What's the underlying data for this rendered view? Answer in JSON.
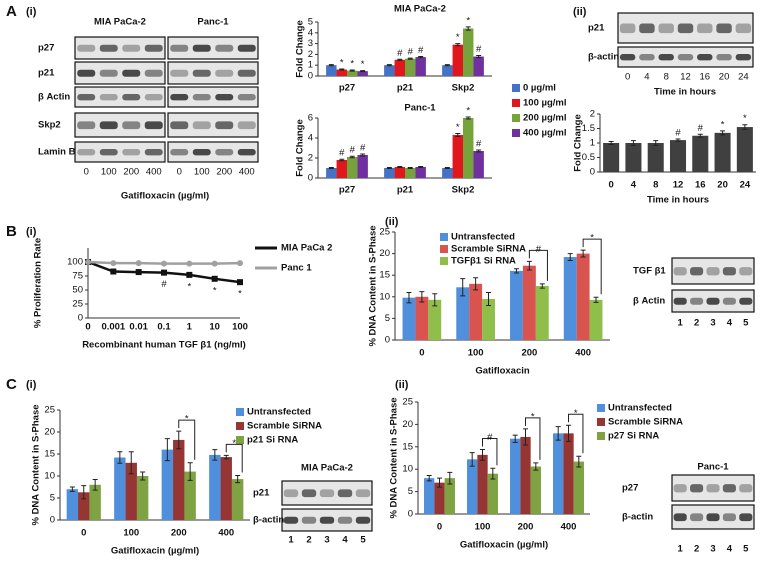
{
  "panel_labels": [
    "A",
    "(i)",
    "(ii)",
    "B",
    "(i)",
    "(ii)",
    "C",
    "(i)",
    "(ii)"
  ],
  "chart_data": [
    {
      "type": "bar",
      "title": "MIA PaCa-2",
      "ylabel": "Fold Change",
      "categories": [
        "p27",
        "p21",
        "Skp2"
      ],
      "ylim": [
        0,
        5
      ],
      "yticks": [
        0,
        1,
        2,
        3,
        4,
        5
      ],
      "legend": true,
      "series": [
        {
          "name": "0 µg/ml",
          "color": "#4472c4",
          "values": [
            1,
            1,
            1
          ],
          "errors": [
            0.05,
            0.05,
            0.05
          ]
        },
        {
          "name": "100 µg/ml",
          "color": "#e0181e",
          "values": [
            0.6,
            1.5,
            2.9
          ],
          "errors": [
            0.05,
            0.05,
            0.1
          ],
          "annotations": [
            "*",
            "#",
            "*"
          ]
        },
        {
          "name": "200 µg/ml",
          "color": "#77a33c",
          "values": [
            0.5,
            1.6,
            4.4
          ],
          "errors": [
            0.05,
            0.05,
            0.15
          ],
          "annotations": [
            "*",
            "#",
            "*"
          ]
        },
        {
          "name": "400 µg/ml",
          "color": "#7030a0",
          "values": [
            0.45,
            1.75,
            1.8
          ],
          "errors": [
            0.05,
            0.05,
            0.1
          ],
          "annotations": [
            "*",
            "#",
            "#"
          ]
        }
      ]
    },
    {
      "type": "bar",
      "title": "Panc-1",
      "ylabel": "Fold Change",
      "categories": [
        "p27",
        "p21",
        "Skp2"
      ],
      "ylim": [
        0,
        6
      ],
      "yticks": [
        0,
        2,
        4,
        6
      ],
      "series": [
        {
          "color": "#4472c4",
          "values": [
            1,
            1,
            1
          ],
          "errors": [
            0.05,
            0.05,
            0.05
          ]
        },
        {
          "color": "#e0181e",
          "values": [
            1.8,
            1.1,
            4.3
          ],
          "errors": [
            0.08,
            0.05,
            0.15
          ],
          "annotations": [
            "#",
            null,
            "*"
          ]
        },
        {
          "color": "#77a33c",
          "values": [
            2.1,
            1.0,
            6.0
          ],
          "errors": [
            0.08,
            0.05,
            0.1
          ],
          "annotations": [
            "#",
            null,
            "*"
          ]
        },
        {
          "color": "#7030a0",
          "values": [
            2.3,
            1.1,
            2.7
          ],
          "errors": [
            0.1,
            0.05,
            0.1
          ],
          "annotations": [
            "#",
            null,
            "#"
          ]
        }
      ]
    },
    {
      "type": "bar",
      "ylabel": "Fold Change",
      "xlabel": "Time in hours",
      "categories": [
        "0",
        "4",
        "8",
        "12",
        "16",
        "20",
        "24"
      ],
      "ylim": [
        0,
        2
      ],
      "yticks": [
        0,
        0.5,
        1,
        1.5,
        2
      ],
      "series": [
        {
          "color": "#404040",
          "values": [
            1,
            1,
            1,
            1.1,
            1.25,
            1.35,
            1.55
          ],
          "errors": [
            0.05,
            0.08,
            0.08,
            0.04,
            0.05,
            0.07,
            0.08
          ],
          "annotations": [
            null,
            null,
            null,
            "#",
            "#",
            "*",
            "*"
          ]
        }
      ]
    },
    {
      "type": "line",
      "ylabel": "% Proliferation Rate",
      "xlabel": "Recombinant human TGF β1 (ng/ml)",
      "categories": [
        "0",
        "0.001",
        "0.01",
        "0.1",
        "1",
        "10",
        "100"
      ],
      "ylim": [
        0,
        125
      ],
      "yticks": [
        0,
        25,
        50,
        75,
        100
      ],
      "legend": true,
      "series": [
        {
          "name": "MIA PaCa 2",
          "color": "#111111",
          "marker": "square",
          "values": [
            100,
            83,
            82,
            81,
            77,
            70,
            64
          ],
          "annotations": [
            null,
            null,
            null,
            "#",
            "*",
            "*",
            "*"
          ]
        },
        {
          "name": "Panc 1",
          "color": "#a0a0a0",
          "marker": "circle",
          "values": [
            100,
            98,
            98,
            97,
            97,
            97,
            98
          ]
        }
      ]
    },
    {
      "type": "bar",
      "ylabel": "% DNA Content  in S-Phase",
      "xlabel": "Gatifloxacin",
      "categories": [
        "0",
        "100",
        "200",
        "400"
      ],
      "ylim": [
        0,
        25
      ],
      "yticks": [
        0,
        5,
        10,
        15,
        20,
        25
      ],
      "legend": true,
      "brackets": [
        null,
        null,
        "#",
        "*"
      ],
      "series": [
        {
          "name": "Untransfected",
          "color": "#4f8fdc",
          "values": [
            9.8,
            12.2,
            16,
            19.2
          ],
          "errors": [
            1.2,
            2,
            0.5,
            0.8
          ]
        },
        {
          "name": "Scramble SiRNA",
          "color": "#d9534f",
          "values": [
            10,
            13,
            17.2,
            20
          ],
          "errors": [
            1.2,
            1.4,
            1,
            0.8
          ]
        },
        {
          "name": "TGFβ1 Si RNA",
          "color": "#8fbf4a",
          "values": [
            9.3,
            9.5,
            12.5,
            9.3
          ],
          "errors": [
            1.4,
            1.5,
            0.5,
            0.6
          ]
        }
      ]
    },
    {
      "type": "bar",
      "ylabel": "% DNA Content  in S-Phase",
      "xlabel": "Gatifloxacin (µg/ml)",
      "categories": [
        "0",
        "100",
        "200",
        "400"
      ],
      "ylim": [
        0,
        25
      ],
      "yticks": [
        0,
        5,
        10,
        15,
        20,
        25
      ],
      "legend": true,
      "brackets": [
        null,
        null,
        "*",
        "*"
      ],
      "series": [
        {
          "name": "Untransfected",
          "color": "#4f8fdc",
          "values": [
            7,
            14.2,
            16,
            14.8
          ],
          "errors": [
            0.5,
            1.3,
            2.5,
            1.2
          ]
        },
        {
          "name": "Scramble SiRNA",
          "color": "#963634",
          "values": [
            6.3,
            13,
            18.2,
            14.3
          ],
          "errors": [
            1.5,
            2.5,
            2,
            0.4
          ]
        },
        {
          "name": "p21 Si RNA",
          "color": "#7fa343",
          "values": [
            8,
            10,
            11,
            9.3
          ],
          "errors": [
            1.2,
            0.9,
            2,
            0.8
          ]
        }
      ]
    },
    {
      "type": "bar",
      "ylabel": "% DNA Content  in S-Phase",
      "xlabel": "Gatifloxacin (µg/ml)",
      "categories": [
        "0",
        "100",
        "200",
        "400"
      ],
      "ylim": [
        0,
        25
      ],
      "yticks": [
        0,
        5,
        10,
        15,
        20,
        25
      ],
      "legend": true,
      "brackets": [
        null,
        "#",
        "*",
        "*"
      ],
      "series": [
        {
          "name": "Untransfected",
          "color": "#4f8fdc",
          "values": [
            8,
            12.2,
            16.8,
            18
          ],
          "errors": [
            0.6,
            1.5,
            0.8,
            1.5
          ]
        },
        {
          "name": "Scramble SiRNA",
          "color": "#963634",
          "values": [
            7,
            13.2,
            17.2,
            18
          ],
          "errors": [
            1,
            1.2,
            1.8,
            1.8
          ]
        },
        {
          "name": "p27 Si RNA",
          "color": "#7fa343",
          "values": [
            8,
            9,
            10.6,
            11.7
          ],
          "errors": [
            1.3,
            1.2,
            0.8,
            1.2
          ]
        }
      ]
    }
  ],
  "blots": [
    {
      "titles": [
        "MIA PaCa-2",
        "Panc-1"
      ],
      "rows": [
        "p27",
        "p21",
        "β Actin",
        "Skp2",
        "Lamin B"
      ],
      "lanes": [
        "0",
        "100",
        "200",
        "400",
        "0",
        "100",
        "200",
        "400"
      ],
      "xlabel": "Gatifloxacin (µg/ml)"
    },
    {
      "rows": [
        "p21",
        "β-actin"
      ],
      "lanes": [
        "0",
        "4",
        "8",
        "12",
        "16",
        "20",
        "24"
      ],
      "xlabel": "Time in hours"
    },
    {
      "rows": [
        "TGF β1",
        "β Actin"
      ],
      "lanes": [
        "1",
        "2",
        "3",
        "4",
        "5"
      ]
    },
    {
      "titles": [
        "MIA PaCa-2"
      ],
      "rows": [
        "p21",
        "β-actin"
      ],
      "lanes": [
        "1",
        "2",
        "3",
        "4",
        "5"
      ]
    },
    {
      "titles": [
        "Panc-1"
      ],
      "rows": [
        "p27",
        "β-actin"
      ],
      "lanes": [
        "1",
        "2",
        "3",
        "4",
        "5"
      ]
    }
  ]
}
